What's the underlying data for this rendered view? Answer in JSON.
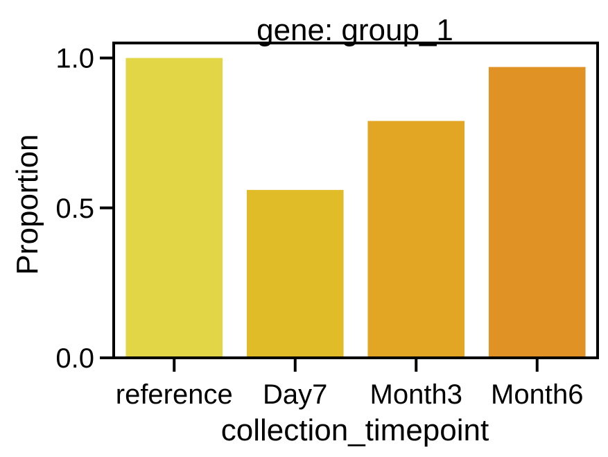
{
  "chart_data": {
    "type": "bar",
    "title": "gene: group_1",
    "xlabel": "collection_timepoint",
    "ylabel": "Proportion",
    "categories": [
      "reference",
      "Day7",
      "Month3",
      "Month6"
    ],
    "values": [
      1.0,
      0.56,
      0.79,
      0.97
    ],
    "colors": [
      "#e2d546",
      "#e0bc29",
      "#e2a624",
      "#e09324"
    ],
    "ylim": [
      0,
      1.05
    ],
    "yticks": [
      0.0,
      0.5,
      1.0
    ],
    "ytick_labels": [
      "0.0",
      "0.5",
      "1.0"
    ],
    "grid": false,
    "legend": "none"
  }
}
